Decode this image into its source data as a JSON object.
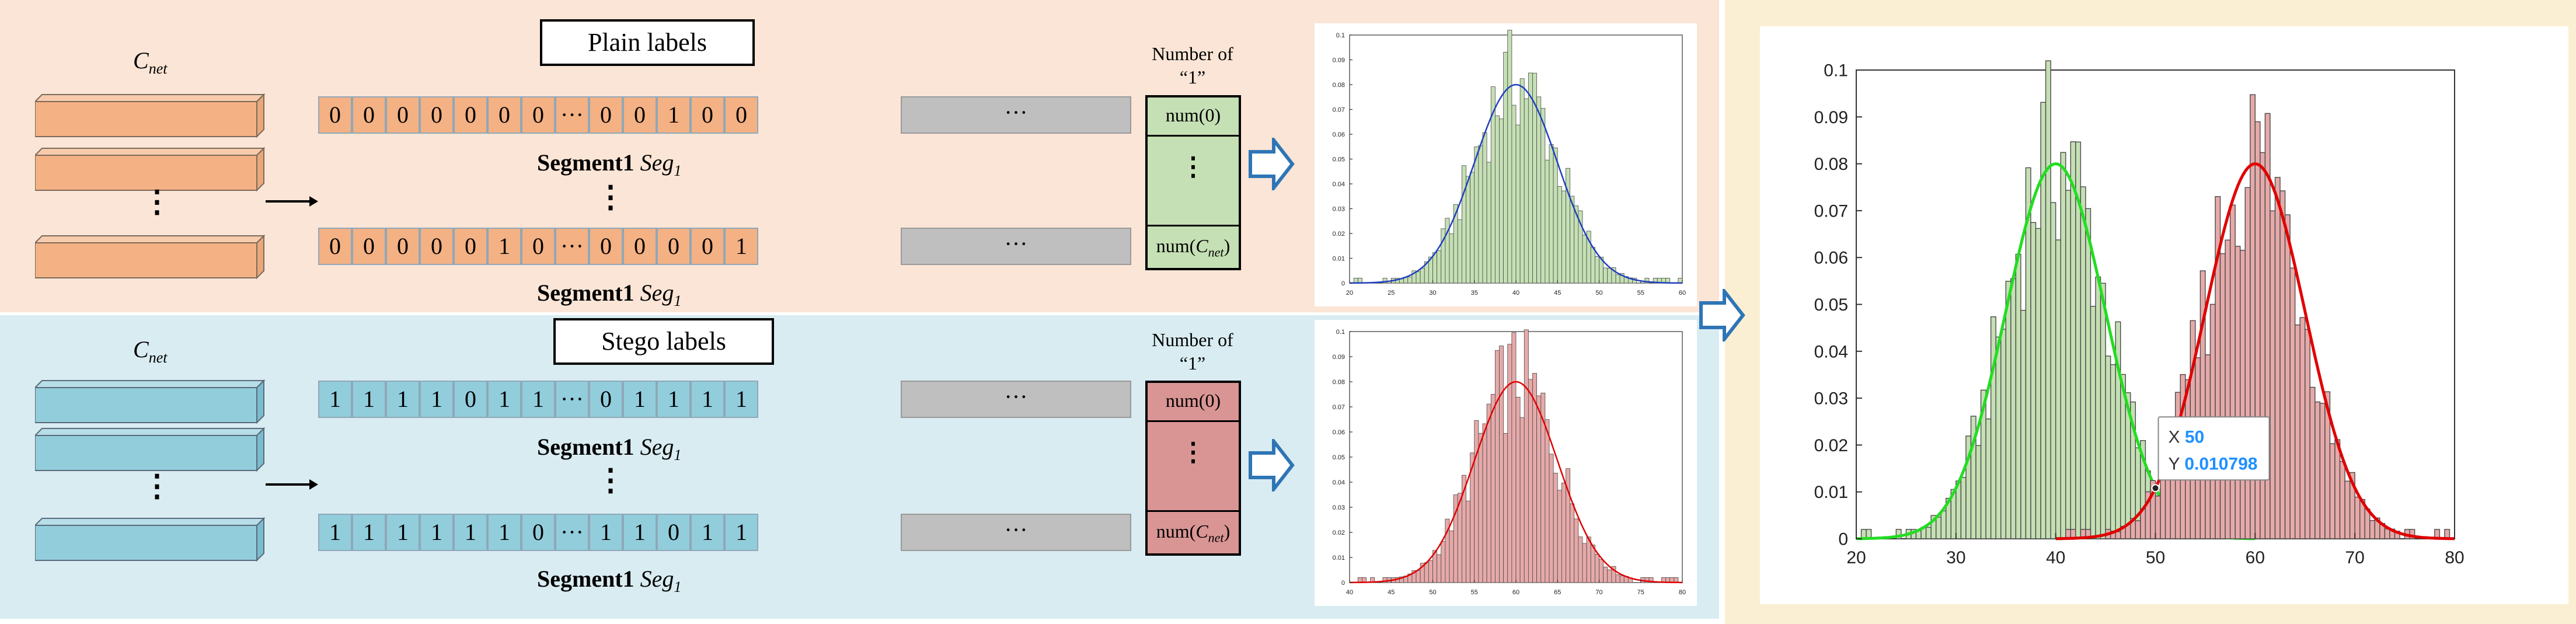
{
  "colors": {
    "top_bg": "#fbe5d6",
    "bottom_bg": "#d9ecf2",
    "right_bg": "#fbefd3",
    "orange_cell": "#f4b183",
    "blue_cell": "#92cddc",
    "green_hist": "#c5e0b4",
    "red_hist": "#e6a9a9",
    "blue_curve": "#1f3fbf",
    "red_curve": "#e00000",
    "green_curve": "#22dd22",
    "arrow_blue": "#2e75b6",
    "tooltip_value": "#1e90ff"
  },
  "top": {
    "title": "Plain labels",
    "cnet_base": "C",
    "cnet_sub": "net",
    "row1": [
      "0",
      "0",
      "0",
      "0",
      "0",
      "0",
      "0",
      "···",
      "0",
      "0",
      "1",
      "0",
      "0"
    ],
    "row2": [
      "0",
      "0",
      "0",
      "0",
      "0",
      "1",
      "0",
      "···",
      "0",
      "0",
      "0",
      "0",
      "1"
    ],
    "gray_text": "···",
    "seg_bold": "Segment1",
    "seg_base": "Seg",
    "seg_sub": "1",
    "vdots": "⋮",
    "number_of_line1": "Number of",
    "number_of_line2": "“1”",
    "num_top": "num(0)",
    "num_bottom_base": "num(",
    "num_bottom_sub_base": "C",
    "num_bottom_sub": "net",
    "num_bottom_close": ")"
  },
  "bottom": {
    "title": "Stego labels",
    "cnet_base": "C",
    "cnet_sub": "net",
    "row1": [
      "1",
      "1",
      "1",
      "1",
      "0",
      "1",
      "1",
      "···",
      "0",
      "1",
      "1",
      "1",
      "1"
    ],
    "row2": [
      "1",
      "1",
      "1",
      "1",
      "1",
      "1",
      "0",
      "···",
      "1",
      "1",
      "0",
      "1",
      "1"
    ],
    "gray_text": "···",
    "seg_bold": "Segment1",
    "seg_base": "Seg",
    "seg_sub": "1",
    "vdots": "⋮",
    "number_of_line1": "Number of",
    "number_of_line2": "“1”",
    "num_top": "num(0)",
    "num_bottom_base": "num(",
    "num_bottom_sub_base": "C",
    "num_bottom_sub": "net",
    "num_bottom_close": ")"
  },
  "chart_data": [
    {
      "type": "histogram",
      "name": "plain-distribution",
      "xlim": [
        20,
        60
      ],
      "ylim": [
        0,
        0.1
      ],
      "x_ticks": [
        "20",
        "25",
        "30",
        "35",
        "40",
        "45",
        "50",
        "55",
        "60"
      ],
      "y_ticks": [
        "0",
        "0.01",
        "0.02",
        "0.03",
        "0.04",
        "0.05",
        "0.06",
        "0.07",
        "0.08",
        "0.09",
        "0.1"
      ],
      "fit": {
        "type": "normal",
        "mean": 40,
        "peak": 0.08,
        "sigma": 5
      },
      "series": [
        {
          "name": "plain labels",
          "color": "#c5e0b4",
          "curve_color": "#1f3fbf"
        }
      ]
    },
    {
      "type": "histogram",
      "name": "stego-distribution",
      "xlim": [
        40,
        80
      ],
      "ylim": [
        0,
        0.1
      ],
      "x_ticks": [
        "40",
        "45",
        "50",
        "55",
        "60",
        "65",
        "70",
        "75",
        "80"
      ],
      "y_ticks": [
        "0",
        "0.01",
        "0.02",
        "0.03",
        "0.04",
        "0.05",
        "0.06",
        "0.07",
        "0.08",
        "0.09",
        "0.1"
      ],
      "fit": {
        "type": "normal",
        "mean": 60,
        "peak": 0.08,
        "sigma": 5
      },
      "series": [
        {
          "name": "stego labels",
          "color": "#e6a9a9",
          "curve_color": "#e00000"
        }
      ]
    },
    {
      "type": "histogram",
      "name": "combined-distribution",
      "xlim": [
        20,
        80
      ],
      "ylim": [
        0,
        0.1
      ],
      "x_ticks": [
        "20",
        "30",
        "40",
        "50",
        "60",
        "70",
        "80"
      ],
      "y_ticks": [
        "0",
        "0.01",
        "0.02",
        "0.03",
        "0.04",
        "0.05",
        "0.06",
        "0.07",
        "0.08",
        "0.09",
        "0.1"
      ],
      "series": [
        {
          "name": "plain labels",
          "color": "#c5e0b4",
          "curve_color": "#22dd22",
          "mean": 40,
          "peak": 0.08,
          "sigma": 5
        },
        {
          "name": "stego labels",
          "color": "#e6a9a9",
          "curve_color": "#e00000",
          "mean": 60,
          "peak": 0.08,
          "sigma": 5
        }
      ],
      "datatip": {
        "x_label": "X",
        "x_value": "50",
        "y_label": "Y",
        "y_value": "0.010798",
        "x": 50,
        "y": 0.010798
      }
    }
  ]
}
